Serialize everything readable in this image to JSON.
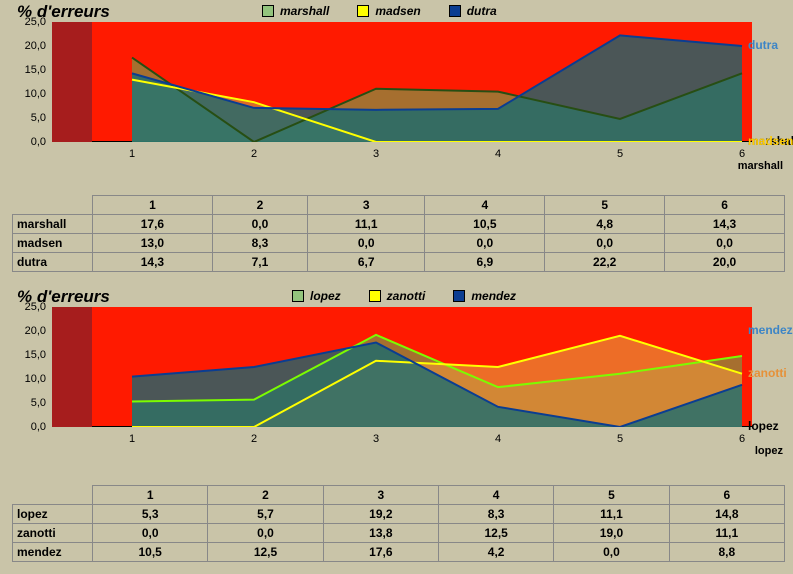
{
  "background_color": "#c9c4a8",
  "plot_background": "#ff1a00",
  "red_block_color": "#a61d1d",
  "ylim": [
    0,
    25
  ],
  "yticks": [
    0,
    5,
    10,
    15,
    20,
    25
  ],
  "ytick_labels": [
    "0,0",
    "5,0",
    "10,0",
    "15,0",
    "20,0",
    "25,0"
  ],
  "xvals": [
    1,
    2,
    3,
    4,
    5,
    6
  ],
  "xtick_labels": [
    "1",
    "2",
    "3",
    "4",
    "5",
    "6"
  ],
  "title_fontsize": 17,
  "legend_fontsize": 12,
  "charts": [
    {
      "title": "% d'erreurs",
      "x_axis_label": "marshall",
      "series": [
        {
          "name": "marshall",
          "label": "marshall",
          "fill": "#6aa84f",
          "fill_opacity": 0.6,
          "stroke": "#274e13",
          "swatch": "#93c47d",
          "tag_color": "#000000",
          "tag_y": 0.0,
          "values": [
            17.6,
            0.0,
            11.1,
            10.5,
            4.8,
            14.3
          ]
        },
        {
          "name": "madsen",
          "label": "madsen",
          "fill": "#bfa94a",
          "fill_opacity": 0.55,
          "stroke": "#ffff00",
          "swatch": "#ffff00",
          "tag_color": "#ffcc00",
          "tag_y": 0.0,
          "values": [
            13.0,
            8.3,
            0.0,
            0.0,
            0.0,
            0.0
          ]
        },
        {
          "name": "dutra",
          "label": "dutra",
          "fill": "#0f6b74",
          "fill_opacity": 0.75,
          "stroke": "#0b3d91",
          "swatch": "#0b3d91",
          "tag_color": "#3d85c6",
          "tag_y": 20.0,
          "values": [
            14.3,
            7.1,
            6.7,
            6.9,
            22.2,
            20.0
          ]
        }
      ]
    },
    {
      "title": "% d'erreurs",
      "x_axis_label": "lopez",
      "series": [
        {
          "name": "lopez",
          "label": "lopez",
          "fill": "#6aa84f",
          "fill_opacity": 0.6,
          "stroke": "#7cfc00",
          "swatch": "#93c47d",
          "tag_color": "#000000",
          "tag_y": 0.0,
          "values": [
            5.3,
            5.7,
            19.2,
            8.3,
            11.1,
            14.8
          ]
        },
        {
          "name": "zanotti",
          "label": "zanotti",
          "fill": "#e69138",
          "fill_opacity": 0.7,
          "stroke": "#ffff00",
          "swatch": "#ffff00",
          "tag_color": "#e69138",
          "tag_y": 11.1,
          "values": [
            0.0,
            0.0,
            13.8,
            12.5,
            19.0,
            11.1
          ]
        },
        {
          "name": "mendez",
          "label": "mendez",
          "fill": "#0f6b74",
          "fill_opacity": 0.75,
          "stroke": "#0b3d91",
          "swatch": "#0b3d91",
          "tag_color": "#3d85c6",
          "tag_y": 20.0,
          "values": [
            10.5,
            12.5,
            17.6,
            4.2,
            0.0,
            8.8
          ]
        }
      ]
    }
  ]
}
